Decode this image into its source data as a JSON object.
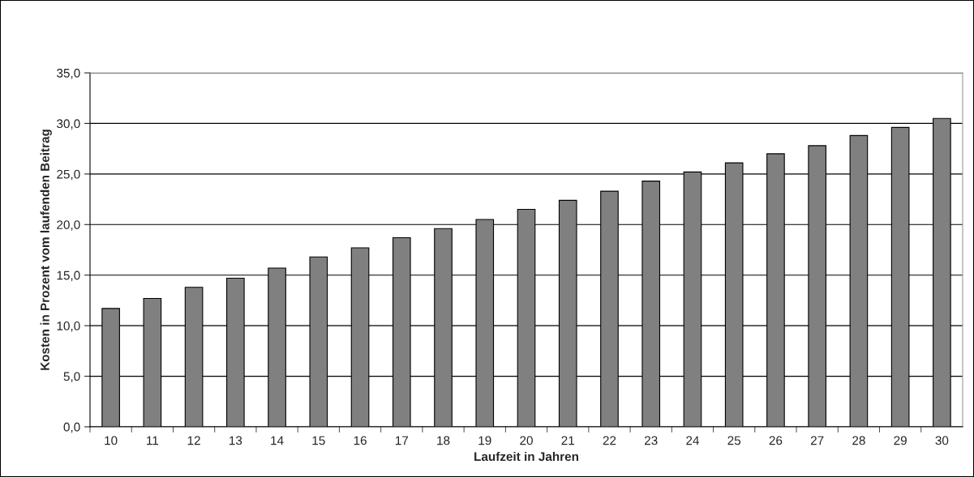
{
  "chart_data": {
    "type": "bar",
    "xlabel": "Laufzeit in Jahren",
    "ylabel": "Kosten in Prozent vom laufenden Beitrag",
    "categories": [
      "10",
      "11",
      "12",
      "13",
      "14",
      "15",
      "16",
      "17",
      "18",
      "19",
      "20",
      "21",
      "22",
      "23",
      "24",
      "25",
      "26",
      "27",
      "28",
      "29",
      "30"
    ],
    "values": [
      11.7,
      12.7,
      13.8,
      14.7,
      15.7,
      16.8,
      17.7,
      18.7,
      19.6,
      20.5,
      21.5,
      22.4,
      23.3,
      24.3,
      25.2,
      26.1,
      27.0,
      27.8,
      28.8,
      29.6,
      30.5
    ],
    "color": "#808080",
    "ylim": [
      0,
      35
    ],
    "yticks": [
      {
        "value": 0,
        "label": "0,0"
      },
      {
        "value": 5,
        "label": "5,0"
      },
      {
        "value": 10,
        "label": "10,0"
      },
      {
        "value": 15,
        "label": "15,0"
      },
      {
        "value": 20,
        "label": "20,0"
      },
      {
        "value": 25,
        "label": "25,0"
      },
      {
        "value": 30,
        "label": "30,0"
      },
      {
        "value": 35,
        "label": "35,0"
      }
    ],
    "grid": "y",
    "legend": false
  }
}
